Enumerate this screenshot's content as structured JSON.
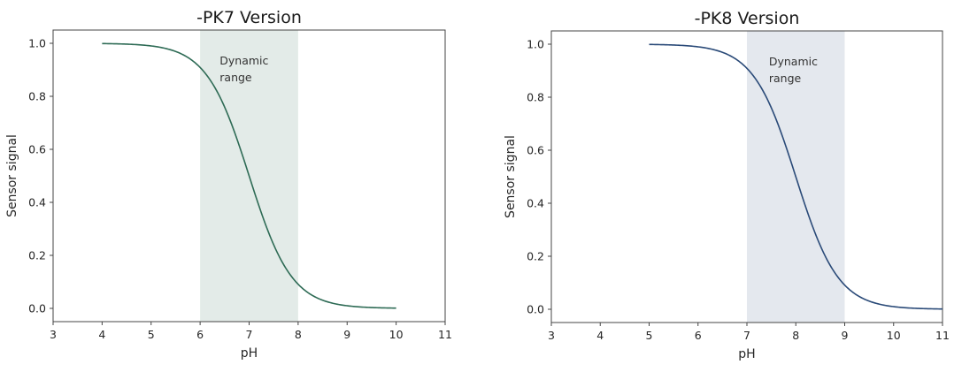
{
  "chart_data": [
    {
      "type": "line",
      "title": "-PK7 Version",
      "xlabel": "pH",
      "ylabel": "Sensor signal",
      "xlim": [
        3,
        11
      ],
      "ylim": [
        -0.05,
        1.05
      ],
      "xticks": [
        3,
        4,
        5,
        6,
        7,
        8,
        9,
        10,
        11
      ],
      "yticks": [
        "0.0",
        "0.2",
        "0.4",
        "0.6",
        "0.8",
        "1.0"
      ],
      "grid": false,
      "pKa": 7,
      "series": [
        {
          "name": "Sensor signal",
          "color": "#2e6b55",
          "x": [
            4,
            4.5,
            5,
            5.5,
            6,
            6.5,
            7,
            7.5,
            8,
            8.5,
            9,
            9.5,
            10
          ],
          "y": [
            0.999,
            0.997,
            0.99,
            0.969,
            0.909,
            0.76,
            0.5,
            0.24,
            0.091,
            0.031,
            0.01,
            0.003,
            0.001
          ]
        }
      ],
      "shaded_region": {
        "x0": 6,
        "x1": 8,
        "color": "#e3ebe8",
        "label": "Dynamic range"
      },
      "annotation": {
        "lines": [
          "Dynamic",
          "range"
        ],
        "x": 6.4,
        "y": 0.92
      }
    },
    {
      "type": "line",
      "title": "-PK8 Version",
      "xlabel": "pH",
      "ylabel": "Sensor signal",
      "xlim": [
        3,
        11
      ],
      "ylim": [
        -0.05,
        1.05
      ],
      "xticks": [
        3,
        4,
        5,
        6,
        7,
        8,
        9,
        10,
        11
      ],
      "yticks": [
        "0.0",
        "0.2",
        "0.4",
        "0.6",
        "0.8",
        "1.0"
      ],
      "grid": false,
      "pKa": 8,
      "series": [
        {
          "name": "Sensor signal",
          "color": "#2a4a78",
          "x": [
            5,
            5.5,
            6,
            6.5,
            7,
            7.5,
            8,
            8.5,
            9,
            9.5,
            10,
            10.5,
            11
          ],
          "y": [
            0.999,
            0.997,
            0.99,
            0.969,
            0.909,
            0.76,
            0.5,
            0.24,
            0.091,
            0.031,
            0.01,
            0.003,
            0.001
          ]
        }
      ],
      "shaded_region": {
        "x0": 7,
        "x1": 9,
        "color": "#e4e8ee",
        "label": "Dynamic range"
      },
      "annotation": {
        "lines": [
          "Dynamic",
          "range"
        ],
        "x": 7.45,
        "y": 0.92
      }
    }
  ]
}
